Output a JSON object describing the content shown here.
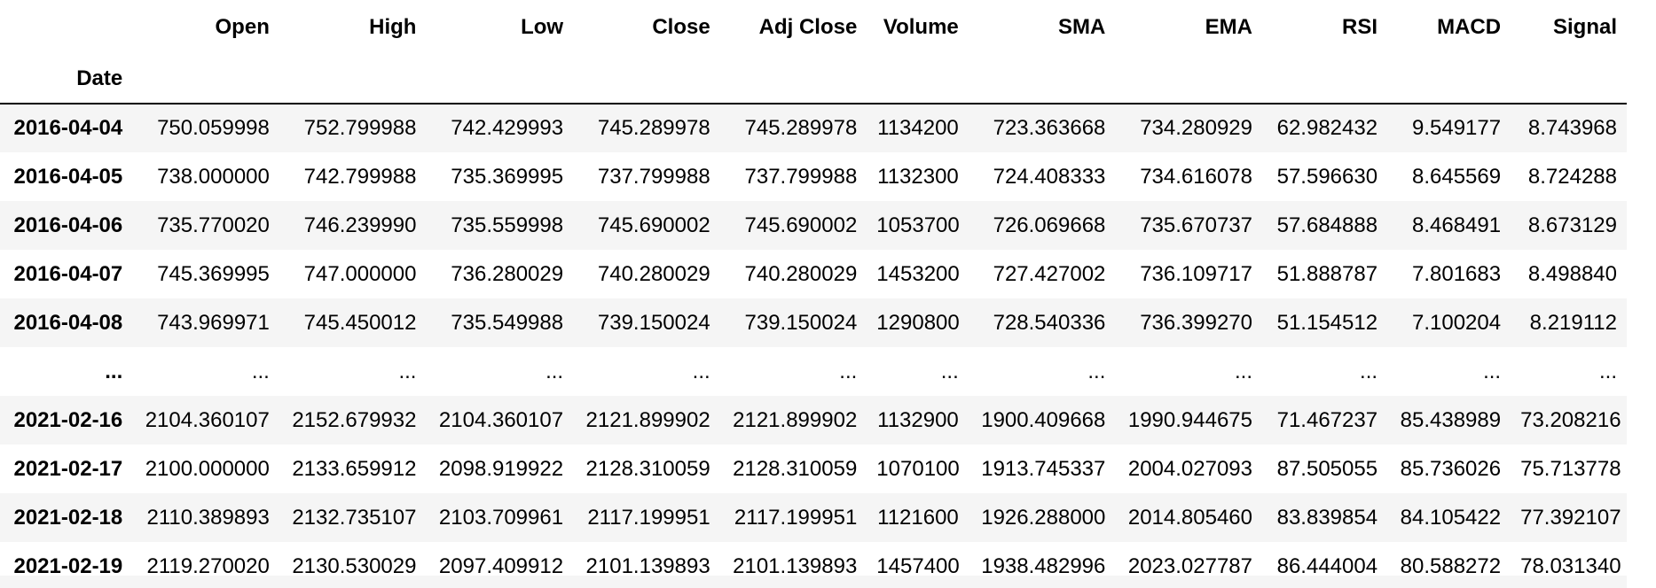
{
  "table": {
    "index_name": "Date",
    "columns": [
      "Open",
      "High",
      "Low",
      "Close",
      "Adj Close",
      "Volume",
      "SMA",
      "EMA",
      "RSI",
      "MACD",
      "Signal"
    ],
    "rows": [
      {
        "date": "2016-04-04",
        "cells": [
          "750.059998",
          "752.799988",
          "742.429993",
          "745.289978",
          "745.289978",
          "1134200",
          "723.363668",
          "734.280929",
          "62.982432",
          "9.549177",
          "8.743968"
        ]
      },
      {
        "date": "2016-04-05",
        "cells": [
          "738.000000",
          "742.799988",
          "735.369995",
          "737.799988",
          "737.799988",
          "1132300",
          "724.408333",
          "734.616078",
          "57.596630",
          "8.645569",
          "8.724288"
        ]
      },
      {
        "date": "2016-04-06",
        "cells": [
          "735.770020",
          "746.239990",
          "735.559998",
          "745.690002",
          "745.690002",
          "1053700",
          "726.069668",
          "735.670737",
          "57.684888",
          "8.468491",
          "8.673129"
        ]
      },
      {
        "date": "2016-04-07",
        "cells": [
          "745.369995",
          "747.000000",
          "736.280029",
          "740.280029",
          "740.280029",
          "1453200",
          "727.427002",
          "736.109717",
          "51.888787",
          "7.801683",
          "8.498840"
        ]
      },
      {
        "date": "2016-04-08",
        "cells": [
          "743.969971",
          "745.450012",
          "735.549988",
          "739.150024",
          "739.150024",
          "1290800",
          "728.540336",
          "736.399270",
          "51.154512",
          "7.100204",
          "8.219112"
        ]
      },
      {
        "date": "...",
        "cells": [
          "...",
          "...",
          "...",
          "...",
          "...",
          "...",
          "...",
          "...",
          "...",
          "...",
          "..."
        ]
      },
      {
        "date": "2021-02-16",
        "cells": [
          "2104.360107",
          "2152.679932",
          "2104.360107",
          "2121.899902",
          "2121.899902",
          "1132900",
          "1900.409668",
          "1990.944675",
          "71.467237",
          "85.438989",
          "73.208216"
        ]
      },
      {
        "date": "2021-02-17",
        "cells": [
          "2100.000000",
          "2133.659912",
          "2098.919922",
          "2128.310059",
          "2128.310059",
          "1070100",
          "1913.745337",
          "2004.027093",
          "87.505055",
          "85.736026",
          "75.713778"
        ]
      },
      {
        "date": "2021-02-18",
        "cells": [
          "2110.389893",
          "2132.735107",
          "2103.709961",
          "2117.199951",
          "2117.199951",
          "1121600",
          "1926.288000",
          "2014.805460",
          "83.839854",
          "84.105422",
          "77.392107"
        ]
      },
      {
        "date": "2021-02-19",
        "cells": [
          "2119.270020",
          "2130.530029",
          "2097.409912",
          "2101.139893",
          "2101.139893",
          "1457400",
          "1938.482996",
          "2023.027787",
          "86.444004",
          "80.588272",
          "78.031340"
        ]
      }
    ]
  }
}
